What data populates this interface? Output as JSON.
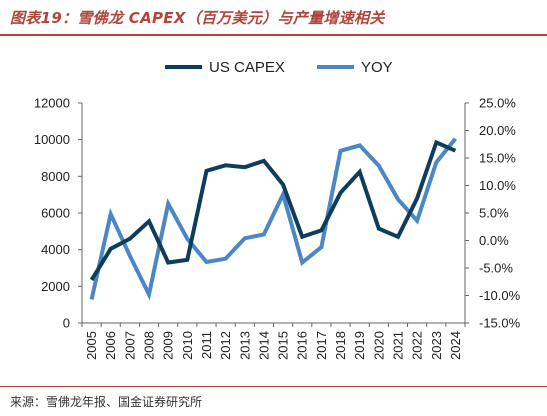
{
  "header": {
    "title": "图表19：雪佛龙 CAPEX（百万美元）与产量增速相关"
  },
  "footer": {
    "source": "来源：雪佛龙年报、国金证券研究所"
  },
  "colors": {
    "accent": "#b0463b",
    "capex_line": "#0e3d5c",
    "yoy_line": "#4b86c5"
  },
  "chart_data": {
    "type": "line",
    "title": "",
    "x": [
      "2005",
      "2006",
      "2007",
      "2008",
      "2009",
      "2010",
      "2011",
      "2012",
      "2013",
      "2014",
      "2015",
      "2016",
      "2017",
      "2018",
      "2019",
      "2020",
      "2021",
      "2022",
      "2023",
      "2024"
    ],
    "series": [
      {
        "name": "US CAPEX",
        "axis": "left",
        "values": [
          2350,
          4050,
          4600,
          5550,
          3300,
          3450,
          8300,
          8600,
          8500,
          8850,
          7550,
          4700,
          5050,
          7100,
          8250,
          5150,
          4700,
          6800,
          9850,
          9400
        ]
      },
      {
        "name": "YOY",
        "axis": "right",
        "values": [
          -10.7,
          4.8,
          -2.8,
          -9.8,
          6.7,
          0.3,
          -3.9,
          -3.3,
          0.4,
          1.1,
          8.4,
          -4.0,
          -1.2,
          16.3,
          17.3,
          13.6,
          7.5,
          3.6,
          14.2,
          18.5
        ]
      }
    ],
    "left_axis": {
      "ylim": [
        0,
        12000
      ],
      "ticks": [
        "0",
        "2000",
        "4000",
        "6000",
        "8000",
        "10000",
        "12000"
      ]
    },
    "right_axis": {
      "ylim": [
        -15,
        25
      ],
      "ticks": [
        "-15.0%",
        "-10.0%",
        "-5.0%",
        "0.0%",
        "5.0%",
        "10.0%",
        "15.0%",
        "20.0%",
        "25.0%"
      ]
    },
    "legend": {
      "position": "top-center",
      "entries": [
        "US CAPEX",
        "YOY"
      ]
    },
    "grid": false
  }
}
